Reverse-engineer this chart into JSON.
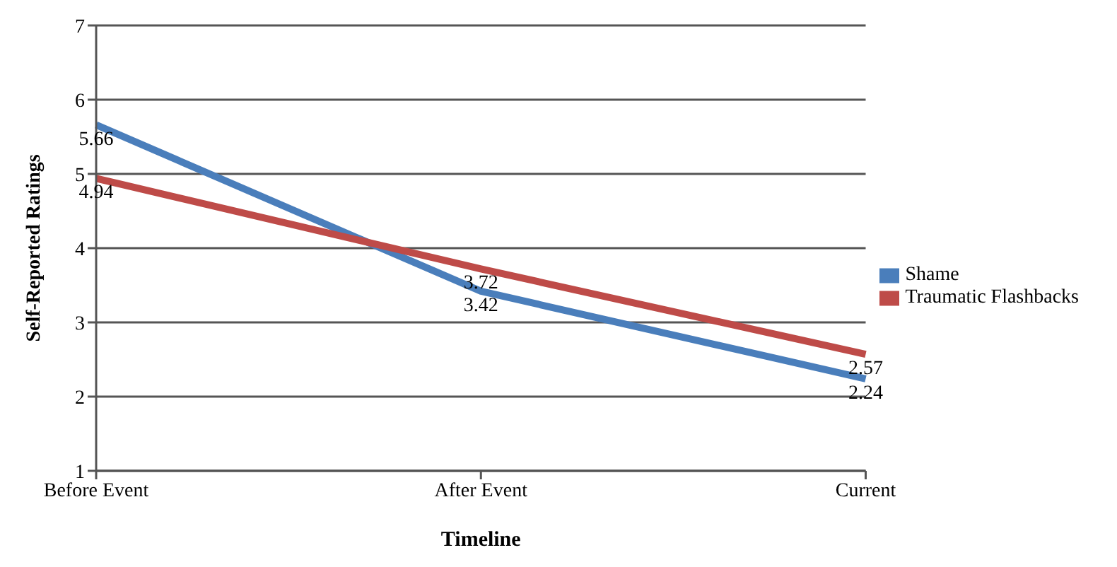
{
  "chart_data": {
    "type": "line",
    "xlabel": "Timeline",
    "ylabel": "Self-Reported Ratings",
    "categories": [
      "Before Event",
      "After Event",
      "Current"
    ],
    "series": [
      {
        "name": "Shame",
        "color": "#4a7ebb",
        "values": [
          5.66,
          3.42,
          2.24
        ]
      },
      {
        "name": "Traumatic Flashbacks",
        "color": "#be4b48",
        "values": [
          4.94,
          3.72,
          2.57
        ]
      }
    ],
    "ylim": [
      1,
      7
    ],
    "yticks": [
      1,
      2,
      3,
      4,
      5,
      6,
      7
    ],
    "grid": "y",
    "legend": "right",
    "marker": "none",
    "line_style": "solid",
    "data_labels": true
  }
}
